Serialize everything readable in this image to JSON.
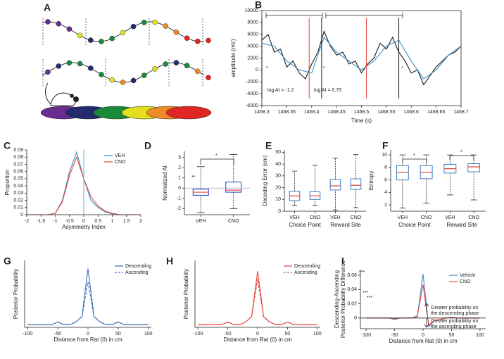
{
  "diagram": {
    "panel": "A"
  },
  "chart_data": [
    {
      "panel": "B",
      "type": "line",
      "x_label": "Time (s)",
      "y_label": "amplitude (mV)",
      "xlim": [
        1468.3,
        1468.7
      ],
      "xticks": [
        1468.3,
        1468.35,
        1468.4,
        1468.45,
        1468.5,
        1468.55,
        1468.6,
        1468.65,
        1468.7
      ],
      "ylim": [
        -6000,
        10000
      ],
      "yticks": [
        -6000,
        -4000,
        -2000,
        0,
        2000,
        4000,
        6000,
        8000,
        10000
      ],
      "series": [
        {
          "color": "#1a1a1a",
          "x": [
            1468.3,
            1468.3125,
            1468.325,
            1468.3375,
            1468.35,
            1468.3625,
            1468.375,
            1468.3875,
            1468.4,
            1468.4125,
            1468.425,
            1468.4375,
            1468.45,
            1468.4625,
            1468.475,
            1468.4875,
            1468.5,
            1468.5125,
            1468.525,
            1468.5375,
            1468.55,
            1468.5625,
            1468.575,
            1468.5875,
            1468.6,
            1468.6125,
            1468.625,
            1468.6375,
            1468.65,
            1468.6625,
            1468.675,
            1468.6875,
            1468.7
          ],
          "values": [
            5000,
            6000,
            3000,
            3500,
            500,
            1500,
            -500,
            -1500,
            1000,
            3000,
            6500,
            4000,
            2500,
            3000,
            1000,
            1500,
            -500,
            1000,
            2000,
            4500,
            3500,
            5500,
            3000,
            1500,
            -500,
            0,
            -2500,
            -1000,
            500,
            1500,
            2500,
            3000,
            4000
          ]
        },
        {
          "color": "#3d8fc6",
          "x": [
            1468.3,
            1468.325,
            1468.35,
            1468.375,
            1468.4,
            1468.425,
            1468.45,
            1468.475,
            1468.5,
            1468.525,
            1468.55,
            1468.575,
            1468.6,
            1468.625,
            1468.65,
            1468.675,
            1468.7
          ],
          "values": [
            4500,
            4000,
            1500,
            0,
            -500,
            5500,
            3000,
            1500,
            0,
            1500,
            4000,
            5000,
            1500,
            -1500,
            0,
            2500,
            4000
          ]
        }
      ],
      "vlines": [
        {
          "x": 1468.3,
          "color": "#1a1a1a"
        },
        {
          "x": 1468.42,
          "color": "#1a1a1a"
        },
        {
          "x": 1468.575,
          "color": "#1a1a1a"
        },
        {
          "x": 1468.395,
          "color": "#e8413c"
        },
        {
          "x": 1468.51,
          "color": "#e8413c"
        }
      ],
      "annotations": [
        "log AI = -1.2",
        "log AI = 0.73",
        "*",
        "*",
        "*"
      ]
    },
    {
      "panel": "C",
      "type": "line",
      "x_label": "Asymmetry Index",
      "y_label": "Proportion",
      "xlim": [
        -2,
        2
      ],
      "xticks": [
        -2,
        -1.5,
        -1,
        -0.5,
        0,
        0.5,
        1,
        1.5,
        2
      ],
      "ylim": [
        0,
        0.09
      ],
      "yticks": [
        0,
        0.01,
        0.02,
        0.03,
        0.04,
        0.05,
        0.06,
        0.07,
        0.08,
        0.09
      ],
      "x": [
        -2,
        -1.75,
        -1.5,
        -1.25,
        -1,
        -0.75,
        -0.5,
        -0.25,
        0,
        0.25,
        0.5,
        0.75,
        1,
        1.25,
        1.5,
        1.75,
        2
      ],
      "legend": "upper right",
      "vline": 0,
      "vline_color": "#6fc3e0",
      "series": [
        {
          "name": "VEH",
          "color": "#3d8fc6",
          "values": [
            0,
            0,
            0,
            0,
            0.002,
            0.02,
            0.06,
            0.087,
            0.05,
            0.02,
            0.01,
            0.004,
            0.001,
            0,
            0,
            0,
            0
          ]
        },
        {
          "name": "CNO",
          "color": "#e8413c",
          "values": [
            0,
            0,
            0,
            0,
            0.002,
            0.018,
            0.055,
            0.08,
            0.05,
            0.025,
            0.012,
            0.005,
            0.002,
            0,
            0,
            0,
            0
          ]
        }
      ]
    },
    {
      "panel": "D",
      "type": "box",
      "y_label": "Normalized AI",
      "categories": [
        "VEH",
        "CNO"
      ],
      "ylim": [
        -2.6,
        3.6
      ],
      "yticks": [
        -2,
        -1,
        0,
        1,
        2,
        3
      ],
      "hline": 0,
      "hline_color": "#9aa7d0",
      "color": "#2040c0",
      "median_color": "#e8413c",
      "boxes": [
        {
          "low": -2.4,
          "q1": -0.7,
          "median": -0.4,
          "q3": -0.1,
          "high": 2.1
        },
        {
          "low": -2.0,
          "q1": -0.4,
          "median": -0.2,
          "q3": 0.6,
          "high": 3.3
        }
      ],
      "annotations": [
        "**",
        "*"
      ]
    },
    {
      "panel": "E",
      "type": "box",
      "y_label": "Decoding Error (cm)",
      "categories": [
        "VEH",
        "CNO",
        "VEH",
        "CNO"
      ],
      "groups": [
        "Choice Point",
        "Reward Site"
      ],
      "ylim": [
        0,
        52
      ],
      "yticks": [
        0,
        10,
        20,
        30,
        40,
        50
      ],
      "color": "#3d7fc0",
      "median_color": "#e8413c",
      "boxes": [
        {
          "low": 5,
          "q1": 9,
          "median": 13,
          "q3": 17,
          "high": 34
        },
        {
          "low": 5,
          "q1": 10,
          "median": 13,
          "q3": 16.5,
          "high": 39
        },
        {
          "low": 1,
          "q1": 18,
          "median": 21.5,
          "q3": 27,
          "high": 45
        },
        {
          "low": 3,
          "q1": 18.5,
          "median": 22,
          "q3": 27.5,
          "high": 48
        }
      ]
    },
    {
      "panel": "F",
      "type": "box",
      "y_label": "Entropy",
      "categories": [
        "VEH",
        "CNO",
        "VEH",
        "CNO"
      ],
      "groups": [
        "Choice Point",
        "Reward Site"
      ],
      "ylim": [
        1,
        10.8
      ],
      "yticks": [
        2,
        4,
        6,
        8,
        10
      ],
      "color": "#3d7fc0",
      "median_color": "#e8413c",
      "boxes": [
        {
          "low": 1.5,
          "q1": 6,
          "median": 7.2,
          "q3": 8.3,
          "high": 10
        },
        {
          "low": 2.3,
          "q1": 6.2,
          "median": 7.2,
          "q3": 8.3,
          "high": 10
        },
        {
          "low": 3.6,
          "q1": 7.1,
          "median": 7.8,
          "q3": 8.5,
          "high": 10
        },
        {
          "low": 2.8,
          "q1": 7.3,
          "median": 8.1,
          "q3": 8.6,
          "high": 10
        }
      ],
      "annotations": [
        "*",
        "*"
      ]
    },
    {
      "panel": "G",
      "type": "line",
      "x_label": "Distance from Rat (0) in cm",
      "y_label": "Posterior Probability",
      "xlim": [
        -105,
        105
      ],
      "xticks": [
        -100,
        -50,
        0,
        50,
        100
      ],
      "ylim": [
        0,
        0.25
      ],
      "legend": "upper right",
      "x": [
        -100,
        -90,
        -80,
        -70,
        -60,
        -50,
        -40,
        -30,
        -20,
        -10,
        0,
        10,
        20,
        30,
        40,
        50,
        60,
        70,
        80,
        90,
        100
      ],
      "series": [
        {
          "name": "Descending",
          "color": "#3d6fb8",
          "values": [
            0.01,
            0.01,
            0.01,
            0.01,
            0.01,
            0.02,
            0.01,
            0.01,
            0.02,
            0.04,
            0.22,
            0.04,
            0.02,
            0.01,
            0.01,
            0.02,
            0.01,
            0.01,
            0.01,
            0.01,
            0.01
          ]
        },
        {
          "name": "Ascending",
          "color": "#3d6fb8",
          "dashed": true,
          "values": [
            0.01,
            0.01,
            0.01,
            0.01,
            0.01,
            0.02,
            0.01,
            0.01,
            0.02,
            0.04,
            0.17,
            0.04,
            0.02,
            0.01,
            0.01,
            0.02,
            0.01,
            0.01,
            0.01,
            0.01,
            0.01
          ]
        }
      ]
    },
    {
      "panel": "H",
      "type": "line",
      "x_label": "Distance from Rat (0) in cm",
      "y_label": "Posterior Probability",
      "xlim": [
        -105,
        105
      ],
      "xticks": [
        -100,
        -50,
        0,
        50,
        100
      ],
      "ylim": [
        0,
        0.25
      ],
      "legend": "upper right",
      "x": [
        -100,
        -90,
        -80,
        -70,
        -60,
        -50,
        -40,
        -30,
        -20,
        -10,
        0,
        10,
        20,
        30,
        40,
        50,
        60,
        70,
        80,
        90,
        100
      ],
      "series": [
        {
          "name": "Descending",
          "color": "#e8413c",
          "values": [
            0.01,
            0.01,
            0.01,
            0.01,
            0.01,
            0.02,
            0.01,
            0.01,
            0.02,
            0.04,
            0.21,
            0.04,
            0.02,
            0.01,
            0.01,
            0.02,
            0.01,
            0.01,
            0.01,
            0.01,
            0.01
          ]
        },
        {
          "name": "Ascending",
          "color": "#e8413c",
          "dashed": true,
          "values": [
            0.01,
            0.01,
            0.01,
            0.01,
            0.01,
            0.02,
            0.01,
            0.01,
            0.02,
            0.04,
            0.18,
            0.04,
            0.02,
            0.01,
            0.01,
            0.02,
            0.01,
            0.01,
            0.01,
            0.01,
            0.01
          ]
        }
      ]
    },
    {
      "panel": "I",
      "type": "line",
      "x_label": "Distance from Rat (0) in cm",
      "y_label": [
        "Posterior Probability Difference",
        "Descending-Ascending"
      ],
      "xlim": [
        -110,
        110
      ],
      "xticks": [
        -100,
        -50,
        0,
        50,
        100
      ],
      "ylim": [
        -0.015,
        0.068
      ],
      "yticks": [
        0,
        0.02,
        0.04,
        0.06
      ],
      "legend": "upper right",
      "hline": 0,
      "hline_color": "#1a1a1a",
      "x": [
        -100,
        -90,
        -80,
        -70,
        -60,
        -50,
        -40,
        -30,
        -20,
        -10,
        0,
        10,
        20,
        30,
        40,
        50,
        60,
        70,
        80,
        90,
        100
      ],
      "series": [
        {
          "name": "Vehicle",
          "color": "#3d8fc6",
          "values": [
            0,
            0,
            0,
            0,
            0,
            -0.002,
            0,
            0,
            0,
            0.002,
            0.062,
            -0.012,
            -0.004,
            -0.002,
            0,
            0.001,
            0,
            0,
            0,
            0,
            0
          ]
        },
        {
          "name": "CNO",
          "color": "#e8413c",
          "values": [
            0,
            0,
            0,
            0,
            0,
            -0.001,
            0,
            0,
            0,
            0.003,
            0.047,
            -0.01,
            -0.003,
            -0.002,
            0,
            0.001,
            0,
            0,
            0,
            0,
            0
          ]
        }
      ],
      "annotations": [
        "***",
        "***",
        "***",
        "Greater probability on",
        "the descending phase",
        "Greater probability on",
        "the ascending phase"
      ]
    }
  ]
}
